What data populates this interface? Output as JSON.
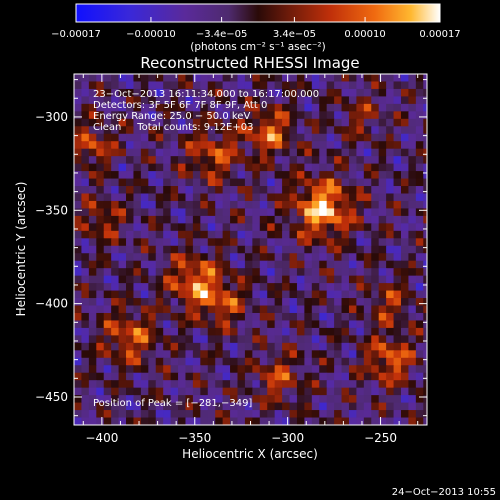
{
  "chart_data": {
    "type": "heatmap",
    "title": "Reconstructed RHESSI Image",
    "xlabel": "Heliocentric X (arcsec)",
    "ylabel": "Heliocentric Y (arcsec)",
    "xlim": [
      -415,
      -225
    ],
    "ylim": [
      -465,
      -277
    ],
    "x_ticks": [
      -400,
      -350,
      -300,
      -250
    ],
    "x_tick_labels": [
      "−400",
      "−350",
      "−300",
      "−250"
    ],
    "y_ticks": [
      -300,
      -350,
      -400,
      -450
    ],
    "y_tick_labels": [
      "−300",
      "−350",
      "−400",
      "−450"
    ],
    "colorbar": {
      "range": [
        -0.00017,
        0.00017
      ],
      "tick_values": [
        -0.00017,
        -0.0001,
        -3.4e-05,
        3.4e-05,
        0.0001,
        0.00017
      ],
      "tick_labels": [
        "−0.00017",
        "−0.00010",
        "−3.4e−05",
        "3.4e−05",
        "0.00010",
        "0.00017"
      ],
      "unit_label": "(photons cm⁻² s⁻¹ asec⁻²)",
      "colors": [
        "#1010ff",
        "#3a28d8",
        "#5a2a9a",
        "#4e2a6e",
        "#2a0a08",
        "#6a1a0a",
        "#c0300a",
        "#f06a10",
        "#ffb830",
        "#ffffff"
      ]
    },
    "annotations": [
      "23−Oct−2013 16:11:34.000 to 16:17:00.000",
      "Detectors: 3F 5F 6F 7F 8F 9F, Att 0",
      "Energy Range: 25.0 − 50.0 keV",
      "Clean     Total counts: 9.12E+03"
    ],
    "peak_label": "Position of Peak = [−281,−349]",
    "peak": {
      "x": -281,
      "y": -349
    },
    "sources": [
      {
        "x": -281,
        "y": -349,
        "amp": 0.00017,
        "sigma": 11
      },
      {
        "x": -310,
        "y": -308,
        "amp": 0.00012,
        "sigma": 9
      },
      {
        "x": -340,
        "y": -320,
        "amp": 0.0001,
        "sigma": 10
      },
      {
        "x": -350,
        "y": -388,
        "amp": 0.00013,
        "sigma": 10
      },
      {
        "x": -335,
        "y": -400,
        "amp": 9e-05,
        "sigma": 9
      },
      {
        "x": -385,
        "y": -418,
        "amp": 0.00011,
        "sigma": 10
      },
      {
        "x": -305,
        "y": -440,
        "amp": 9e-05,
        "sigma": 9
      },
      {
        "x": -245,
        "y": -430,
        "amp": 0.00012,
        "sigma": 9
      },
      {
        "x": -245,
        "y": -400,
        "amp": 8e-05,
        "sigma": 8
      },
      {
        "x": -405,
        "y": -315,
        "amp": 0.0001,
        "sigma": 8
      },
      {
        "x": -400,
        "y": -355,
        "amp": 8e-05,
        "sigma": 8
      },
      {
        "x": -260,
        "y": -300,
        "amp": 6e-05,
        "sigma": 8
      }
    ]
  },
  "footer_timestamp": "24−Oct−2013 10:55"
}
